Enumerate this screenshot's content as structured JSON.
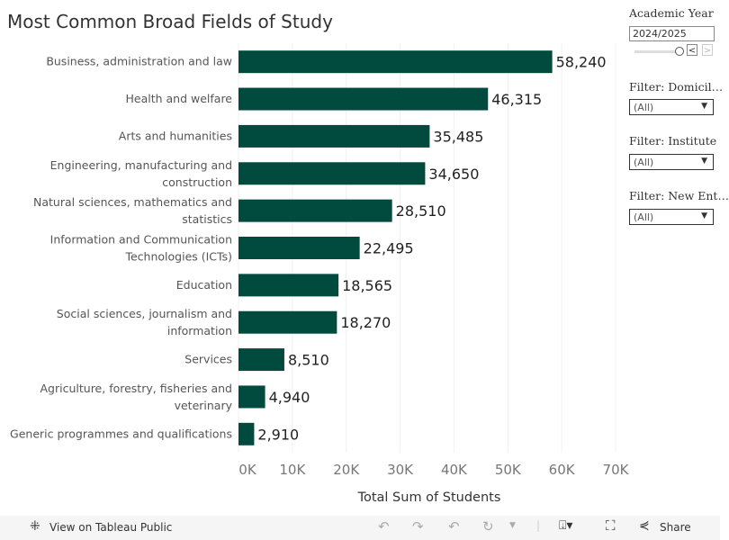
{
  "title": "Most Common Broad Fields of Study",
  "chart_data": {
    "type": "bar",
    "orientation": "horizontal",
    "title": "Most Common Broad Fields of Study",
    "xlabel": "Total Sum of Students",
    "ylabel": "",
    "categories": [
      [
        "Business, administration and law"
      ],
      [
        "Health and welfare"
      ],
      [
        "Arts and humanities"
      ],
      [
        "Engineering, manufacturing and",
        "construction"
      ],
      [
        "Natural sciences, mathematics and",
        "statistics"
      ],
      [
        "Information and Communication",
        "Technologies (ICTs)"
      ],
      [
        "Education"
      ],
      [
        "Social sciences, journalism and",
        "information"
      ],
      [
        "Services"
      ],
      [
        "Agriculture, forestry, fisheries and",
        "veterinary"
      ],
      [
        "Generic programmes and qualifications"
      ]
    ],
    "values": [
      58240,
      46315,
      35485,
      34650,
      28510,
      22495,
      18565,
      18270,
      8510,
      4940,
      2910
    ],
    "value_labels": [
      "58,240",
      "46,315",
      "35,485",
      "34,650",
      "28,510",
      "22,495",
      "18,565",
      "18,270",
      "8,510",
      "4,940",
      "2,910"
    ],
    "xlim": [
      0,
      70000
    ],
    "ticks": [
      0,
      10000,
      20000,
      30000,
      40000,
      50000,
      60000,
      70000
    ],
    "tick_labels": [
      "0K",
      "10K",
      "20K",
      "30K",
      "40K",
      "50K",
      "60K",
      "70K"
    ],
    "grid": true,
    "color": "#004b3d"
  },
  "filters": {
    "year_label": "Academic Year",
    "year_value": "2024/2025",
    "prev": "<",
    "next": ">",
    "items": [
      {
        "label": "Filter: Domicil…",
        "value": "(All)"
      },
      {
        "label": "Filter: Institute",
        "value": "(All)"
      },
      {
        "label": "Filter: New Ent…",
        "value": "(All)"
      }
    ]
  },
  "footer": {
    "view": "View on Tableau Public",
    "share": "Share"
  }
}
